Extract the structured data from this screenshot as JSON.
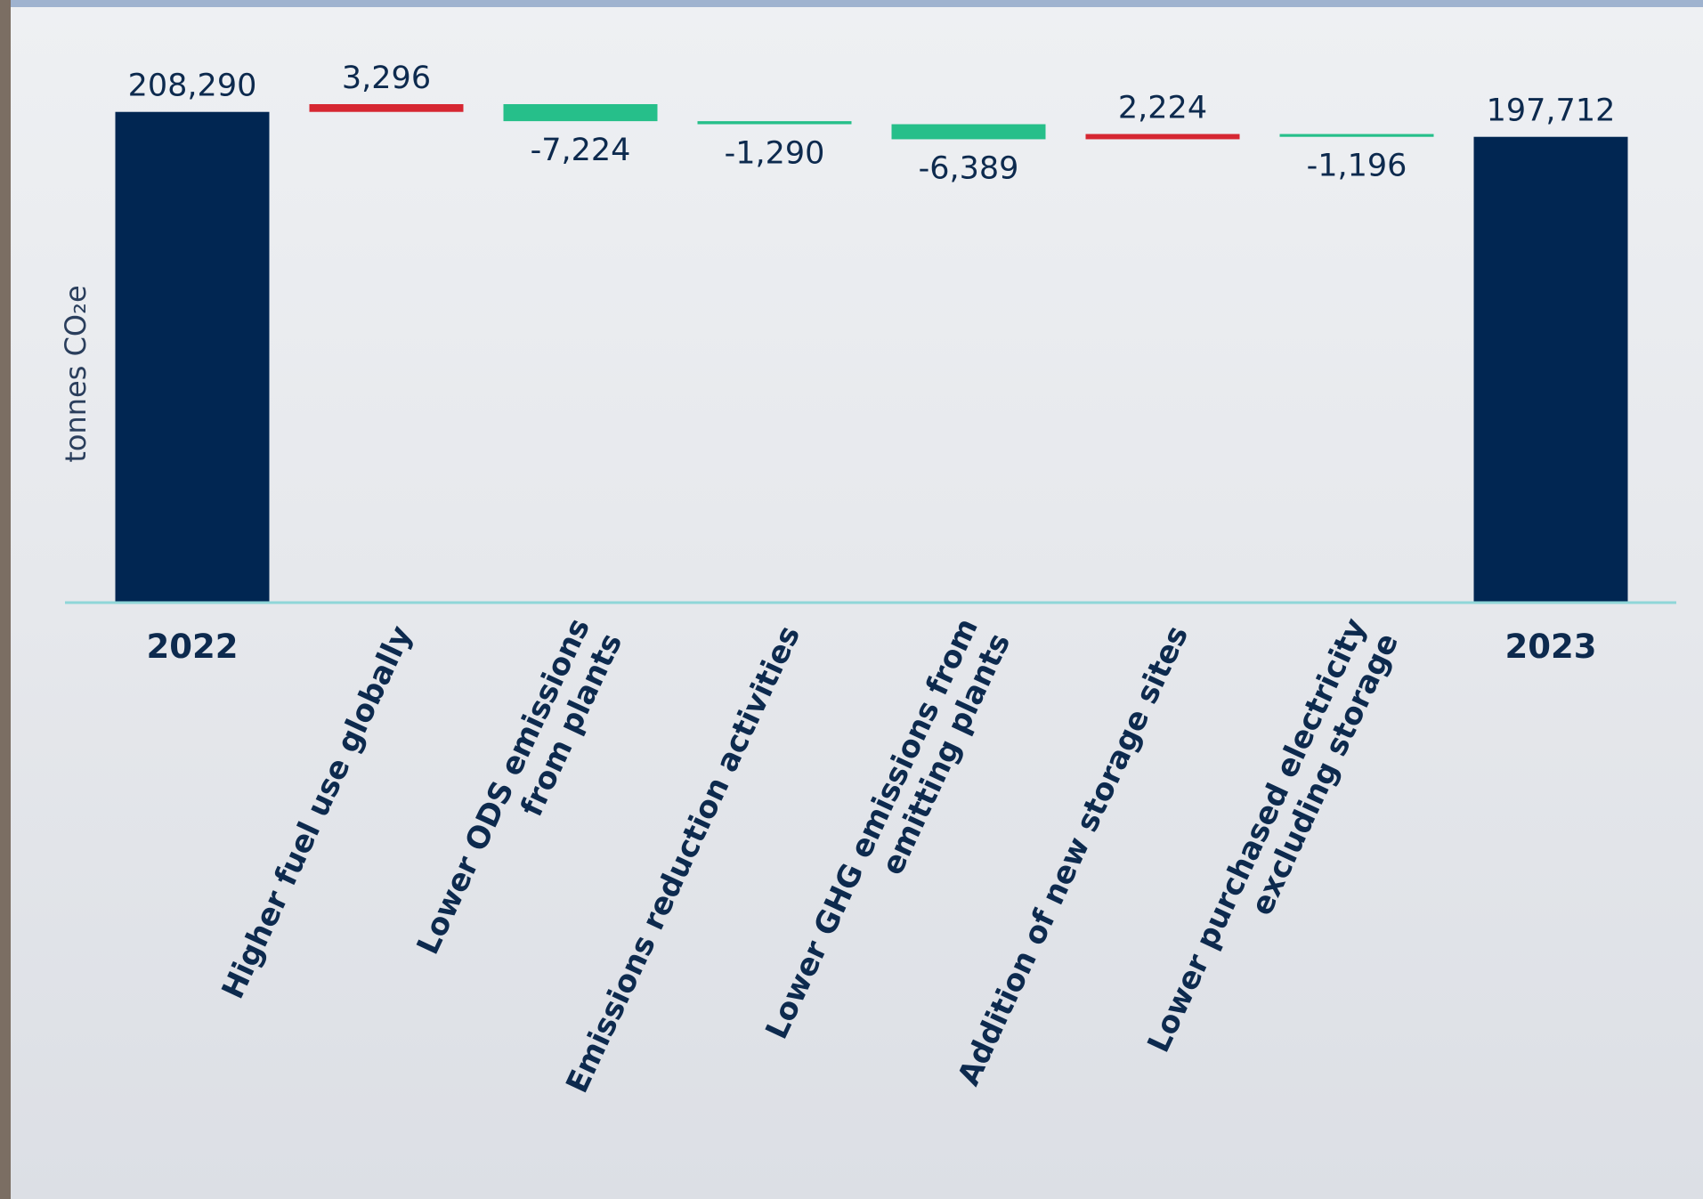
{
  "chart_data": {
    "type": "waterfall",
    "y_label": "tonnes CO₂e",
    "categories": [
      "2022",
      [
        "Higher fuel use globally"
      ],
      [
        "Lower ODS emissions",
        "from plants"
      ],
      [
        "Emissions reduction activities"
      ],
      [
        "Lower GHG emissions from",
        "emitting plants"
      ],
      [
        "Addition of new storage sites"
      ],
      [
        "Lower purchased electricity",
        "excluding storage"
      ],
      "2023"
    ],
    "values": [
      208290,
      3296,
      -7224,
      -1290,
      -6389,
      2224,
      -1196,
      197712
    ],
    "value_labels": [
      "208,290",
      "3,296",
      "-7,224",
      "-1,290",
      "-6,389",
      "2,224",
      "-1,196",
      "197,712"
    ],
    "colors": {
      "total": "#012652",
      "increase": "#d62732",
      "decrease": "#26bf8a"
    }
  }
}
